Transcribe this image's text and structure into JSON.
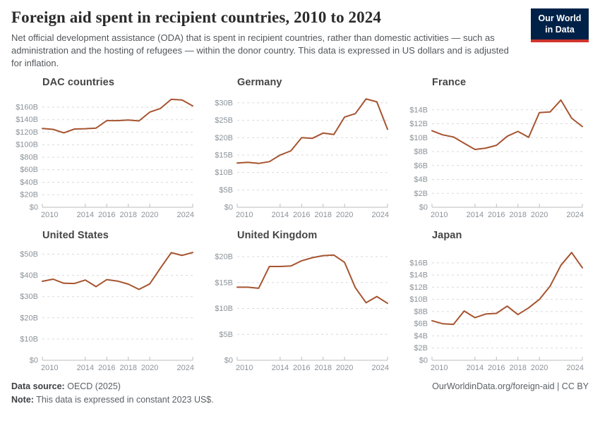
{
  "header": {
    "title": "Foreign aid spent in recipient countries, 2010 to 2024",
    "subtitle": "Net official development assistance (ODA) that is spent in recipient countries, rather than domestic activities — such as administration and the hosting of refugees — within the donor country. This data is expressed in US dollars and is adjusted for inflation.",
    "logo": {
      "line1": "Our World",
      "line2": "in Data"
    }
  },
  "style": {
    "line_color": "#A65430",
    "grid_color": "#d9d9d9",
    "axis_color": "#bdbdbd",
    "tick_label_color": "#8b9399"
  },
  "chart_data": [
    {
      "type": "line",
      "title": "DAC countries",
      "x": [
        2010,
        2011,
        2012,
        2013,
        2014,
        2015,
        2016,
        2017,
        2018,
        2019,
        2020,
        2021,
        2022,
        2023,
        2024
      ],
      "values": [
        126,
        124.5,
        119,
        125,
        125.5,
        126.5,
        138.5,
        138.5,
        139.5,
        138,
        152,
        158,
        172.5,
        171.5,
        162
      ],
      "ylim": [
        0,
        178
      ],
      "yticks": [
        0,
        20,
        40,
        60,
        80,
        100,
        120,
        140,
        160
      ],
      "ytick_labels": [
        "$0",
        "$20B",
        "$40B",
        "$60B",
        "$80B",
        "$100B",
        "$120B",
        "$140B",
        "$160B"
      ],
      "xticks": [
        2010,
        2014,
        2016,
        2018,
        2020,
        2024
      ]
    },
    {
      "type": "line",
      "title": "Germany",
      "x": [
        2010,
        2011,
        2012,
        2013,
        2014,
        2015,
        2016,
        2017,
        2018,
        2019,
        2020,
        2021,
        2022,
        2023,
        2024
      ],
      "values": [
        12.7,
        12.9,
        12.6,
        13.1,
        15.0,
        16.2,
        20.0,
        19.8,
        21.3,
        20.9,
        25.9,
        26.9,
        31.1,
        30.3,
        22.4
      ],
      "ylim": [
        0,
        32
      ],
      "yticks": [
        0,
        5,
        10,
        15,
        20,
        25,
        30
      ],
      "ytick_labels": [
        "$0",
        "$5B",
        "$10B",
        "$15B",
        "$20B",
        "$25B",
        "$30B"
      ],
      "xticks": [
        2010,
        2014,
        2016,
        2018,
        2020,
        2024
      ]
    },
    {
      "type": "line",
      "title": "France",
      "x": [
        2010,
        2011,
        2012,
        2013,
        2014,
        2015,
        2016,
        2017,
        2018,
        2019,
        2020,
        2021,
        2022,
        2023,
        2024
      ],
      "values": [
        11.0,
        10.4,
        10.1,
        9.2,
        8.3,
        8.5,
        8.9,
        10.2,
        10.9,
        10.05,
        13.6,
        13.7,
        15.4,
        12.8,
        11.6
      ],
      "ylim": [
        0,
        16
      ],
      "yticks": [
        0,
        2,
        4,
        6,
        8,
        10,
        12,
        14
      ],
      "ytick_labels": [
        "$0",
        "$2B",
        "$4B",
        "$6B",
        "$8B",
        "$10B",
        "$12B",
        "$14B"
      ],
      "xticks": [
        2010,
        2014,
        2016,
        2018,
        2020,
        2024
      ]
    },
    {
      "type": "line",
      "title": "United States",
      "x": [
        2010,
        2011,
        2012,
        2013,
        2014,
        2015,
        2016,
        2017,
        2018,
        2019,
        2020,
        2021,
        2022,
        2023,
        2024
      ],
      "values": [
        37.2,
        38.2,
        36.3,
        36.2,
        37.8,
        34.7,
        38.0,
        37.3,
        35.9,
        33.4,
        36.0,
        43.5,
        50.7,
        49.4,
        50.8
      ],
      "ylim": [
        0,
        52.5
      ],
      "yticks": [
        0,
        10,
        20,
        30,
        40,
        50
      ],
      "ytick_labels": [
        "$0",
        "$10B",
        "$20B",
        "$30B",
        "$40B",
        "$50B"
      ],
      "xticks": [
        2010,
        2014,
        2016,
        2018,
        2020,
        2024
      ]
    },
    {
      "type": "line",
      "title": "United Kingdom",
      "x": [
        2010,
        2011,
        2012,
        2013,
        2014,
        2015,
        2016,
        2017,
        2018,
        2019,
        2020,
        2021,
        2022,
        2023,
        2024
      ],
      "values": [
        14.1,
        14.1,
        13.9,
        18.1,
        18.1,
        18.2,
        19.2,
        19.8,
        20.2,
        20.3,
        18.9,
        14.0,
        11.1,
        12.3,
        11.0
      ],
      "ylim": [
        0,
        21.5
      ],
      "yticks": [
        0,
        5,
        10,
        15,
        20
      ],
      "ytick_labels": [
        "$0",
        "$5B",
        "$10B",
        "$15B",
        "$20B"
      ],
      "xticks": [
        2010,
        2014,
        2016,
        2018,
        2020,
        2024
      ]
    },
    {
      "type": "line",
      "title": "Japan",
      "x": [
        2010,
        2011,
        2012,
        2013,
        2014,
        2015,
        2016,
        2017,
        2018,
        2019,
        2020,
        2021,
        2022,
        2023,
        2024
      ],
      "values": [
        6.5,
        6.0,
        5.9,
        8.1,
        7.0,
        7.6,
        7.7,
        8.9,
        7.5,
        8.6,
        10.0,
        12.2,
        15.6,
        17.7,
        15.2
      ],
      "ylim": [
        0,
        18.3
      ],
      "yticks": [
        0,
        2,
        4,
        6,
        8,
        10,
        12,
        14,
        16
      ],
      "ytick_labels": [
        "$0",
        "$2B",
        "$4B",
        "$6B",
        "$8B",
        "$10B",
        "$12B",
        "$14B",
        "$16B"
      ],
      "xticks": [
        2010,
        2014,
        2016,
        2018,
        2020,
        2024
      ]
    }
  ],
  "footer": {
    "source_label": "Data source:",
    "source_value": "OECD (2025)",
    "note_label": "Note:",
    "note_value": "This data is expressed in constant 2023 US$.",
    "link": "OurWorldinData.org/foreign-aid",
    "separator": " | ",
    "license": "CC BY"
  }
}
